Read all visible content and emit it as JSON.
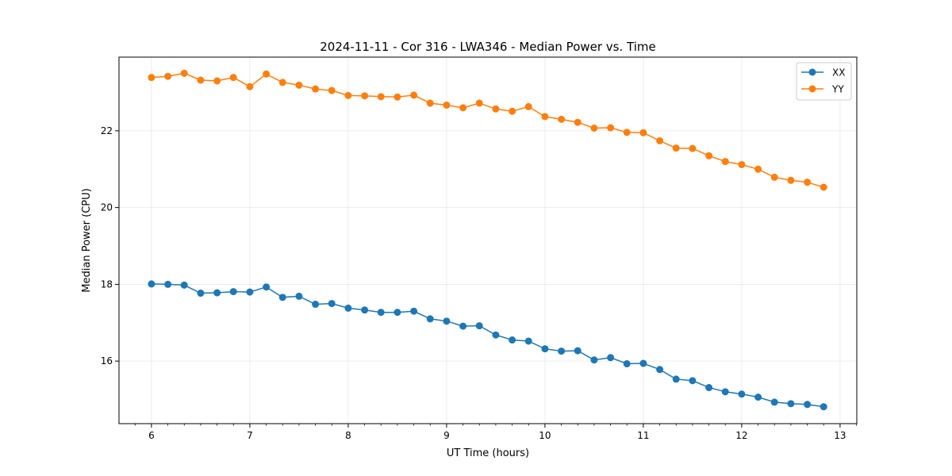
{
  "chart_data": {
    "type": "line",
    "title": "2024-11-11 - Cor 316 - LWA346 - Median Power vs. Time",
    "xlabel": "UT Time (hours)",
    "ylabel": "Median Power (CPU)",
    "xlim": [
      5.67,
      13.17
    ],
    "ylim": [
      14.37,
      23.92
    ],
    "xticks": [
      6,
      7,
      8,
      9,
      10,
      11,
      12,
      13
    ],
    "yticks": [
      16,
      18,
      20,
      22
    ],
    "grid": true,
    "legend_position": "top-right",
    "x": [
      6.0,
      6.167,
      6.333,
      6.5,
      6.667,
      6.833,
      7.0,
      7.167,
      7.333,
      7.5,
      7.667,
      7.833,
      8.0,
      8.167,
      8.333,
      8.5,
      8.667,
      8.833,
      9.0,
      9.167,
      9.333,
      9.5,
      9.667,
      9.833,
      10.0,
      10.167,
      10.333,
      10.5,
      10.667,
      10.833,
      11.0,
      11.167,
      11.333,
      11.5,
      11.667,
      11.833,
      12.0,
      12.167,
      12.333,
      12.5,
      12.667,
      12.833
    ],
    "series": [
      {
        "name": "XX",
        "color": "#1f77b4",
        "values": [
          18.01,
          18.0,
          17.98,
          17.77,
          17.78,
          17.81,
          17.8,
          17.93,
          17.66,
          17.69,
          17.48,
          17.5,
          17.38,
          17.33,
          17.27,
          17.27,
          17.3,
          17.1,
          17.04,
          16.91,
          16.92,
          16.68,
          16.55,
          16.52,
          16.32,
          16.26,
          16.27,
          16.03,
          16.09,
          15.93,
          15.94,
          15.78,
          15.53,
          15.49,
          15.31,
          15.2,
          15.14,
          15.06,
          14.93,
          14.89,
          14.87,
          14.81
        ]
      },
      {
        "name": "YY",
        "color": "#ff7f0e",
        "values": [
          23.39,
          23.42,
          23.5,
          23.32,
          23.3,
          23.39,
          23.15,
          23.48,
          23.26,
          23.19,
          23.09,
          23.05,
          22.92,
          22.91,
          22.89,
          22.88,
          22.93,
          22.72,
          22.67,
          22.6,
          22.72,
          22.57,
          22.51,
          22.63,
          22.37,
          22.3,
          22.22,
          22.07,
          22.08,
          21.96,
          21.95,
          21.74,
          21.55,
          21.54,
          21.35,
          21.2,
          21.12,
          21.0,
          20.79,
          20.71,
          20.66,
          20.53
        ]
      }
    ]
  }
}
